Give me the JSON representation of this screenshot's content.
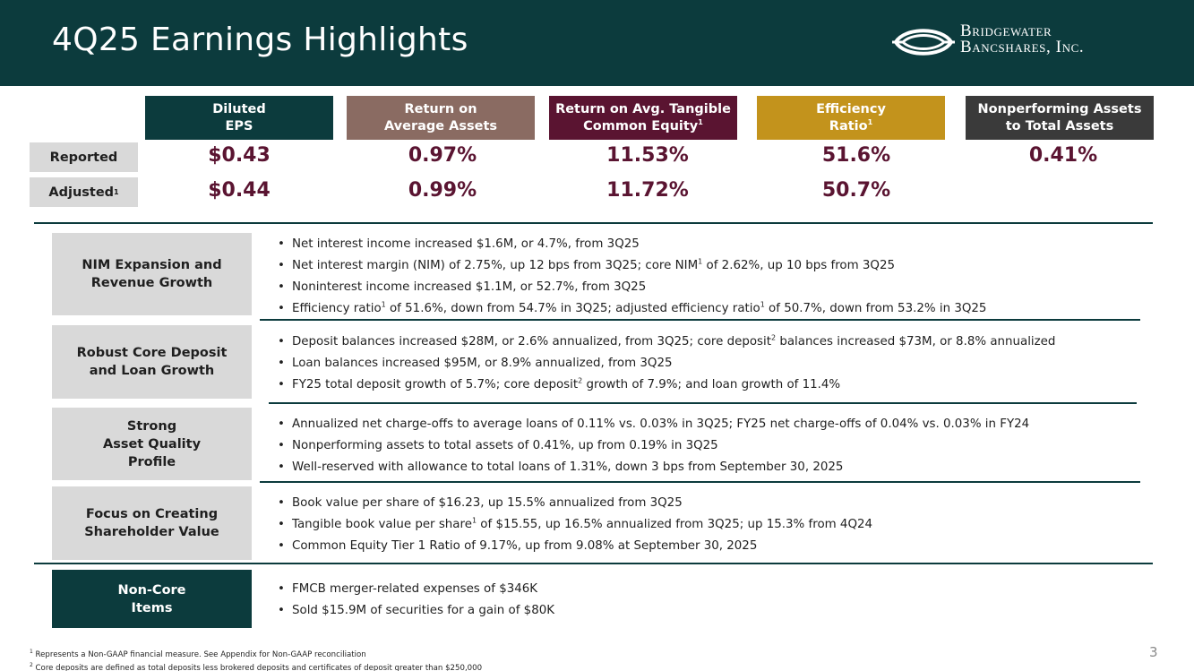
{
  "header": {
    "title": "4Q25 Earnings Highlights",
    "logo_line1": "Bridgewater",
    "logo_line2": "Bancshares, Inc."
  },
  "metrics": {
    "headers": [
      {
        "line1": "Diluted",
        "line2": "EPS",
        "sup": "",
        "color": "#0c3b3d"
      },
      {
        "line1": "Return on",
        "line2": "Average Assets",
        "sup": "",
        "color": "#8a6b62"
      },
      {
        "line1": "Return on Avg. Tangible",
        "line2": "Common Equity",
        "sup": "1",
        "color": "#5a1431"
      },
      {
        "line1": "Efficiency",
        "line2": "Ratio",
        "sup": "1",
        "color": "#c3931c"
      },
      {
        "line1": "Nonperforming Assets",
        "line2": "to Total Assets",
        "sup": "",
        "color": "#3a3a3a"
      }
    ],
    "row_labels": {
      "reported": "Reported",
      "adjusted": "Adjusted",
      "adjusted_sup": "1"
    },
    "reported": [
      "$0.43",
      "0.97%",
      "11.53%",
      "51.6%",
      "0.41%"
    ],
    "adjusted": [
      "$0.44",
      "0.99%",
      "11.72%",
      "50.7%",
      ""
    ],
    "value_color": "#5a1431"
  },
  "sections": [
    {
      "label_line1": "NIM Expansion and",
      "label_line2": "Revenue Growth",
      "bullets": [
        {
          "a": "Net interest income increased $1.6M, or 4.7%, from 3Q25"
        },
        {
          "a": "Net interest margin (NIM) of 2.75%, up 12 bps from 3Q25; core NIM",
          "s1": "1",
          "b": " of 2.62%, up 10 bps from 3Q25"
        },
        {
          "a": "Noninterest income increased $1.1M, or 52.7%, from 3Q25"
        },
        {
          "a": "Efficiency ratio",
          "s1": "1",
          "b": " of 51.6%, down from 54.7% in 3Q25; adjusted efficiency ratio",
          "s2": "1",
          "c": " of 50.7%, down from 53.2% in 3Q25"
        }
      ]
    },
    {
      "label_line1": "Robust Core Deposit",
      "label_line2": "and Loan Growth",
      "bullets": [
        {
          "a": "Deposit balances increased $28M, or 2.6% annualized, from 3Q25; core deposit",
          "s1": "2",
          "b": " balances increased $73M, or 8.8% annualized"
        },
        {
          "a": "Loan balances increased $95M, or 8.9% annualized, from 3Q25"
        },
        {
          "a": "FY25 total deposit growth of 5.7%; core deposit",
          "s1": "2",
          "b": " growth of 7.9%; and loan growth of 11.4%"
        }
      ]
    },
    {
      "label_line1": "Strong",
      "label_line2": "Asset Quality",
      "label_line3": "Profile",
      "bullets": [
        {
          "a": "Annualized net charge-offs to average loans of 0.11% vs. 0.03% in 3Q25; FY25 net charge-offs of 0.04% vs. 0.03% in FY24"
        },
        {
          "a": "Nonperforming assets to total assets of 0.41%, up from 0.19% in 3Q25"
        },
        {
          "a": "Well-reserved with allowance to total loans of 1.31%, down 3 bps from September 30, 2025"
        }
      ]
    },
    {
      "label_line1": "Focus on Creating",
      "label_line2": "Shareholder Value",
      "bullets": [
        {
          "a": "Book value per share of $16.23, up 15.5% annualized from 3Q25"
        },
        {
          "a": "Tangible book value per share",
          "s1": "1",
          "b": " of $15.55, up 16.5% annualized from 3Q25; up 15.3% from 4Q24"
        },
        {
          "a": "Common Equity Tier 1 Ratio of 9.17%, up from 9.08% at September 30, 2025"
        }
      ]
    },
    {
      "label_line1": "Non-Core",
      "label_line2": "Items",
      "bullets": [
        {
          "a": "FMCB merger-related expenses of $346K"
        },
        {
          "a": "Sold $15.9M of securities for a gain of $80K"
        }
      ]
    }
  ],
  "footnotes": {
    "n1_mark": "1",
    "n1": " Represents a Non-GAAP financial measure. See Appendix for Non-GAAP reconciliation",
    "n2_mark": "2",
    "n2": " Core deposits are defined as total deposits less brokered deposits and certificates of deposit greater than $250,000"
  },
  "page_number": "3"
}
